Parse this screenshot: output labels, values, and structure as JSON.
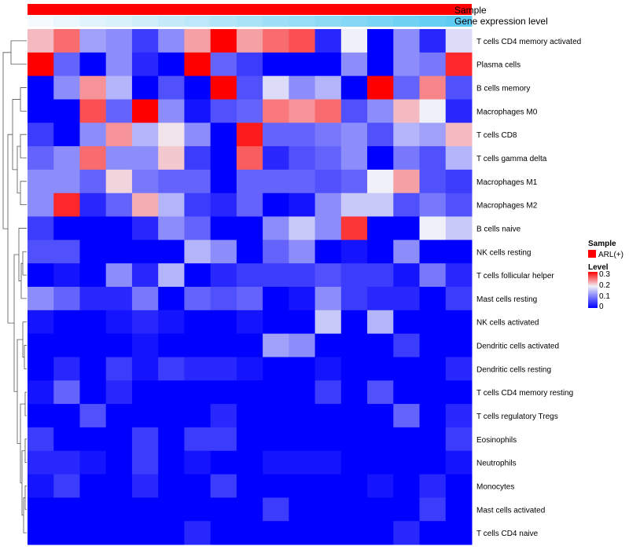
{
  "chart_data": {
    "type": "heatmap",
    "annotation_tracks": [
      {
        "name": "Sample",
        "color": "#ff0000"
      },
      {
        "name": "Gene expression level",
        "gradient_from": "#f4fafd",
        "gradient_to": "#5ecbf2"
      }
    ],
    "rows": [
      "T cells CD4 memory activated",
      "Plasma cells",
      "B cells memory",
      "Macrophages M0",
      "T cells CD8",
      "T cells gamma delta",
      "Macrophages M1",
      "Macrophages M2",
      "B cells naive",
      "NK cells resting",
      "T cells follicular helper",
      "Mast cells resting",
      "NK cells activated",
      "Dendritic cells activated",
      "Dendritic cells resting",
      "T cells CD4 memory resting",
      "T cells regulatory  Tregs",
      "Eosinophils",
      "Neutrophils",
      "Monocytes",
      "Mast cells activated",
      "T cells CD4 naive"
    ],
    "n_columns": 17,
    "values": [
      [
        0.16,
        0.22,
        0.08,
        0.07,
        0.03,
        0.07,
        0.18,
        0.3,
        0.18,
        0.22,
        0.24,
        0.02,
        0.12,
        0.0,
        0.07,
        0.02,
        0.11
      ],
      [
        0.3,
        0.05,
        0.0,
        0.07,
        0.02,
        0.0,
        0.3,
        0.05,
        0.03,
        0.0,
        0.0,
        0.0,
        0.07,
        0.0,
        0.07,
        0.06,
        0.27
      ],
      [
        0.0,
        0.07,
        0.19,
        0.09,
        0.0,
        0.04,
        0.0,
        0.3,
        0.04,
        0.11,
        0.07,
        0.09,
        0.0,
        0.3,
        0.05,
        0.2,
        0.04
      ],
      [
        0.0,
        0.0,
        0.24,
        0.05,
        0.3,
        0.07,
        0.01,
        0.04,
        0.05,
        0.21,
        0.19,
        0.22,
        0.04,
        0.07,
        0.16,
        0.12,
        0.02
      ],
      [
        0.03,
        0.0,
        0.07,
        0.19,
        0.09,
        0.13,
        0.07,
        0.0,
        0.28,
        0.05,
        0.05,
        0.06,
        0.07,
        0.04,
        0.09,
        0.08,
        0.16
      ],
      [
        0.05,
        0.07,
        0.22,
        0.07,
        0.07,
        0.15,
        0.03,
        0.0,
        0.23,
        0.02,
        0.04,
        0.05,
        0.07,
        0.0,
        0.06,
        0.04,
        0.09
      ],
      [
        0.07,
        0.07,
        0.05,
        0.14,
        0.06,
        0.05,
        0.05,
        0.0,
        0.05,
        0.05,
        0.05,
        0.04,
        0.05,
        0.12,
        0.18,
        0.04,
        0.03
      ],
      [
        0.07,
        0.27,
        0.02,
        0.05,
        0.17,
        0.09,
        0.03,
        0.02,
        0.05,
        0.0,
        0.01,
        0.07,
        0.1,
        0.1,
        0.04,
        0.06,
        0.04
      ],
      [
        0.03,
        0.0,
        0.0,
        0.0,
        0.02,
        0.07,
        0.05,
        0.0,
        0.0,
        0.07,
        0.1,
        0.07,
        0.26,
        0.0,
        0.0,
        0.12,
        0.1
      ],
      [
        0.04,
        0.04,
        0.0,
        0.0,
        0.0,
        0.0,
        0.09,
        0.07,
        0.0,
        0.05,
        0.07,
        0.0,
        0.01,
        0.0,
        0.07,
        0.0,
        0.0
      ],
      [
        0.0,
        0.01,
        0.0,
        0.07,
        0.02,
        0.09,
        0.0,
        0.02,
        0.03,
        0.03,
        0.03,
        0.04,
        0.03,
        0.03,
        0.01,
        0.06,
        0.02
      ],
      [
        0.07,
        0.05,
        0.02,
        0.02,
        0.06,
        0.0,
        0.05,
        0.04,
        0.05,
        0.0,
        0.01,
        0.07,
        0.03,
        0.02,
        0.02,
        0.0,
        0.03
      ],
      [
        0.01,
        0.0,
        0.0,
        0.01,
        0.02,
        0.01,
        0.0,
        0.0,
        0.01,
        0.0,
        0.0,
        0.1,
        0.0,
        0.09,
        0.0,
        0.0,
        0.0
      ],
      [
        0.0,
        0.0,
        0.0,
        0.0,
        0.01,
        0.0,
        0.0,
        0.0,
        0.0,
        0.08,
        0.07,
        0.0,
        0.0,
        0.0,
        0.03,
        0.0,
        0.0
      ],
      [
        0.0,
        0.02,
        0.0,
        0.03,
        0.01,
        0.03,
        0.02,
        0.02,
        0.01,
        0.0,
        0.0,
        0.01,
        0.0,
        0.0,
        0.0,
        0.0,
        0.02
      ],
      [
        0.01,
        0.05,
        0.0,
        0.02,
        0.0,
        0.0,
        0.0,
        0.0,
        0.0,
        0.0,
        0.0,
        0.03,
        0.0,
        0.04,
        0.0,
        0.0,
        0.0
      ],
      [
        0.0,
        0.0,
        0.04,
        0.0,
        0.0,
        0.0,
        0.0,
        0.02,
        0.0,
        0.0,
        0.0,
        0.0,
        0.0,
        0.0,
        0.05,
        0.0,
        0.02
      ],
      [
        0.03,
        0.0,
        0.0,
        0.0,
        0.03,
        0.0,
        0.03,
        0.03,
        0.0,
        0.0,
        0.0,
        0.0,
        0.0,
        0.0,
        0.0,
        0.0,
        0.03
      ],
      [
        0.02,
        0.02,
        0.01,
        0.0,
        0.03,
        0.0,
        0.01,
        0.0,
        0.0,
        0.01,
        0.01,
        0.01,
        0.0,
        0.0,
        0.0,
        0.0,
        0.01
      ],
      [
        0.01,
        0.03,
        0.0,
        0.0,
        0.02,
        0.0,
        0.0,
        0.03,
        0.0,
        0.0,
        0.0,
        0.0,
        0.0,
        0.01,
        0.0,
        0.02,
        0.0
      ],
      [
        0.0,
        0.0,
        0.0,
        0.0,
        0.0,
        0.0,
        0.0,
        0.0,
        0.0,
        0.03,
        0.0,
        0.0,
        0.0,
        0.0,
        0.0,
        0.03,
        0.0
      ],
      [
        0.0,
        0.0,
        0.0,
        0.0,
        0.0,
        0.0,
        0.02,
        0.0,
        0.0,
        0.0,
        0.0,
        0.0,
        0.0,
        0.0,
        0.02,
        0.0,
        0.0
      ]
    ],
    "color_scale": {
      "low": "#0000ff",
      "mid": "#f0f0f8",
      "high": "#ff0000",
      "min": 0,
      "mid_value": 0.12,
      "max": 0.3
    },
    "legend": {
      "sample_title": "Sample",
      "sample_entry": "ARL(+)",
      "level_title": "Level",
      "level_ticks": [
        "0.3",
        "0.2",
        "0.1",
        "0"
      ]
    },
    "dendrogram": "row clustering (left)"
  }
}
